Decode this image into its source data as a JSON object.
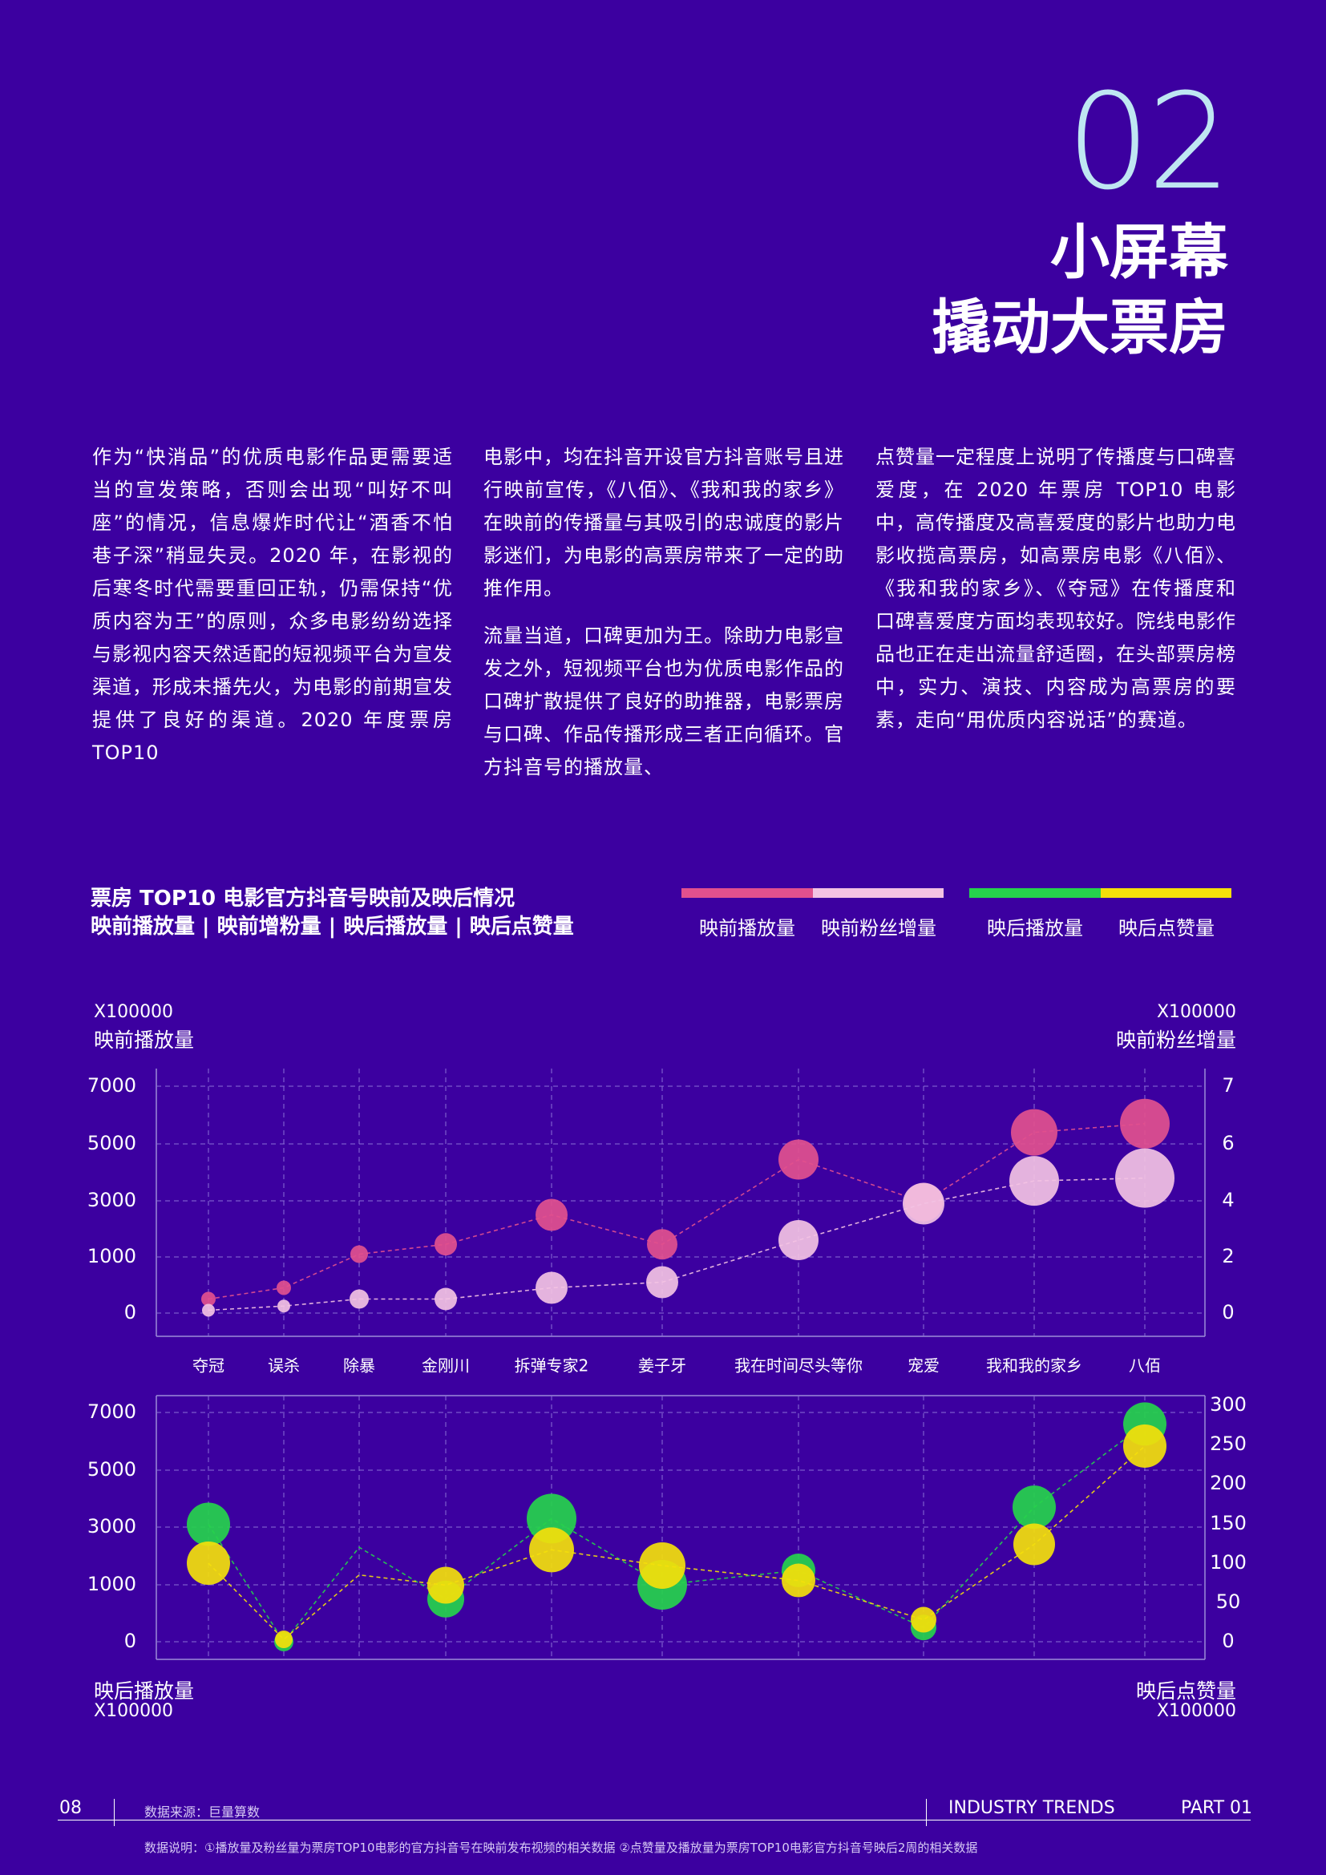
{
  "header": {
    "section_number": "02",
    "title_line_1": "小屏幕",
    "title_line_2": "撬动大票房"
  },
  "body": {
    "col1_p1": "作为“快消品”的优质电影作品更需要适当的宣发策略，否则会出现“叫好不叫座”的情况，信息爆炸时代让“酒香不怕巷子深”稍显失灵。2020 年，在影视的后寒冬时代需要重回正轨，仍需保持“优质内容为王”的原则，众多电影纷纷选择与影视内容天然适配的短视频平台为宣发渠道，形成未播先火，为电影的前期宣发提供了良好的渠道。2020 年度票房 TOP10",
    "col2_p1": "电影中，均在抖音开设官方抖音账号且进行映前宣传，《八佰》、《我和我的家乡》在映前的传播量与其吸引的忠诚度的影片影迷们，为电影的高票房带来了一定的助推作用。",
    "col2_p2": "流量当道，口碑更加为王。除助力电影宣发之外，短视频平台也为优质电影作品的口碑扩散提供了良好的助推器，电影票房与口碑、作品传播形成三者正向循环。官方抖音号的播放量、",
    "col3_p1": "点赞量一定程度上说明了传播度与口碑喜爱度，在 2020 年票房 TOP10 电影中，高传播度及高喜爱度的影片也助力电影收揽高票房，如高票房电影《八佰》、《我和我的家乡》、《夺冠》在传播度和口碑喜爱度方面均表现较好。院线电影作品也正在走出流量舒适圈，在头部票房榜中，实力、演技、内容成为高票房的要素，走向“用优质内容说话”的赛道。"
  },
  "chart_section": {
    "title_line_1": "票房 TOP10 电影官方抖音号映前及映后情况",
    "title_line_2": "映前播放量 | 映前增粉量 | 映后播放量 | 映后点赞量",
    "legend": [
      {
        "label": "映前播放量",
        "color": "#e2508e"
      },
      {
        "label": "映前粉丝增量",
        "color": "#f3c2e3"
      },
      {
        "label": "映后播放量",
        "color": "#26d34c"
      },
      {
        "label": "映后点赞量",
        "color": "#f4e00b"
      }
    ]
  },
  "chart_data": [
    {
      "type": "scatter",
      "categories": [
        "夺冠",
        "误杀",
        "除暴",
        "金刚川",
        "拆弹专家2",
        "姜子牙",
        "我在时间尽头等你",
        "宠爱",
        "我和我的家乡",
        "八佰"
      ],
      "left_axis": {
        "unit": "X100000",
        "label": "映前播放量",
        "ticks": [
          0,
          1000,
          3000,
          5000,
          7000
        ]
      },
      "right_axis": {
        "unit": "X100000",
        "label": "映前粉丝增量",
        "ticks": [
          0,
          2,
          4,
          6,
          7
        ]
      },
      "series": [
        {
          "name": "映前播放量",
          "axis": "left",
          "color": "#e2508e",
          "values": [
            250,
            450,
            1100,
            1450,
            2500,
            1450,
            4450,
            2950,
            5400,
            5700
          ],
          "sizes": [
            9,
            9,
            11,
            14,
            20,
            19,
            25,
            24,
            29,
            31
          ]
        },
        {
          "name": "映前粉丝增量",
          "axis": "right",
          "color": "#f3c2e3",
          "values": [
            0.1,
            0.25,
            0.5,
            0.5,
            0.9,
            1.1,
            2.6,
            3.9,
            4.7,
            4.8
          ],
          "sizes": [
            8,
            8,
            12,
            14,
            20,
            20,
            25,
            26,
            31,
            37
          ]
        }
      ],
      "grid": true
    },
    {
      "type": "scatter",
      "categories": [
        "夺冠",
        "误杀",
        "除暴",
        "金刚川",
        "拆弹专家2",
        "姜子牙",
        "我在时间尽头等你",
        "宠爱",
        "我和我的家乡",
        "八佰"
      ],
      "left_axis": {
        "unit": "X100000",
        "label": "映后播放量",
        "ticks": [
          0,
          1000,
          3000,
          5000,
          7000
        ]
      },
      "right_axis": {
        "unit": "X100000",
        "label": "映后点赞量",
        "ticks": [
          0,
          50,
          100,
          150,
          200,
          250,
          300
        ]
      },
      "series": [
        {
          "name": "映后播放量",
          "axis": "left",
          "color": "#26d34c",
          "values": [
            3100,
            0,
            2300,
            750,
            3300,
            1000,
            1500,
            250,
            3700,
            6600
          ],
          "sizes": [
            27,
            12,
            0,
            23,
            31,
            31,
            21,
            16,
            27,
            27
          ]
        },
        {
          "name": "映后点赞量",
          "axis": "right",
          "color": "#f4e00b",
          "values": [
            100,
            3,
            85,
            72,
            117,
            97,
            78,
            28,
            124,
            248
          ],
          "sizes": [
            27,
            11,
            0,
            23,
            28,
            29,
            21,
            16,
            26,
            27
          ]
        }
      ],
      "grid": true
    }
  ],
  "footer": {
    "page_number": "08",
    "data_source": "数据来源：巨量算数",
    "industry_trends": "INDUSTRY TRENDS",
    "part": "PART 01",
    "note": "数据说明：①播放量及粉丝量为票房TOP10电影的官方抖音号在映前发布视频的相关数据    ②点赞量及播放量为票房TOP10电影官方抖音号映后2周的相关数据"
  }
}
